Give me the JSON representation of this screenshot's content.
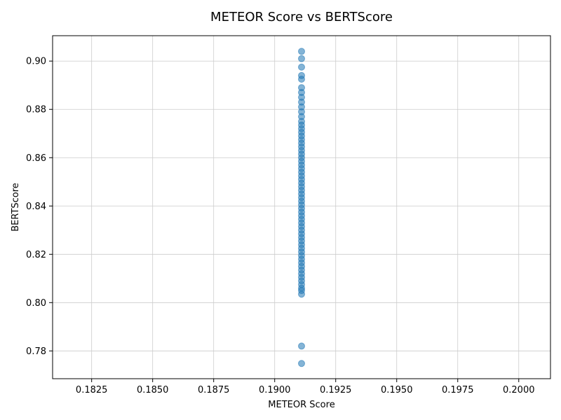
{
  "chart_data": {
    "type": "scatter",
    "title": "METEOR Score vs BERTScore",
    "xlabel": "METEOR Score",
    "ylabel": "BERTScore",
    "xlim": [
      0.1809,
      0.2013
    ],
    "ylim": [
      0.7685,
      0.9105
    ],
    "xticks": [
      0.1825,
      0.185,
      0.1875,
      0.19,
      0.1925,
      0.195,
      0.1975,
      0.2
    ],
    "xtick_labels": [
      "0.1825",
      "0.1850",
      "0.1875",
      "0.1900",
      "0.1925",
      "0.1950",
      "0.1975",
      "0.2000"
    ],
    "yticks": [
      0.78,
      0.8,
      0.82,
      0.84,
      0.86,
      0.88,
      0.9
    ],
    "ytick_labels": [
      "0.78",
      "0.80",
      "0.82",
      "0.84",
      "0.86",
      "0.88",
      "0.90"
    ],
    "grid": true,
    "point_color": "#1f77b4",
    "point_alpha": 0.55,
    "x_value": 0.1911,
    "y": [
      0.904,
      0.901,
      0.8975,
      0.894,
      0.8925,
      0.889,
      0.887,
      0.885,
      0.883,
      0.881,
      0.879,
      0.877,
      0.875,
      0.8735,
      0.872,
      0.8705,
      0.869,
      0.8675,
      0.866,
      0.8645,
      0.863,
      0.8615,
      0.86,
      0.8585,
      0.857,
      0.8555,
      0.854,
      0.8525,
      0.851,
      0.8495,
      0.848,
      0.8465,
      0.845,
      0.8435,
      0.842,
      0.8405,
      0.839,
      0.8375,
      0.836,
      0.8345,
      0.833,
      0.8315,
      0.83,
      0.8285,
      0.827,
      0.8255,
      0.824,
      0.8225,
      0.821,
      0.8195,
      0.818,
      0.8165,
      0.815,
      0.8135,
      0.812,
      0.8105,
      0.809,
      0.8075,
      0.806,
      0.805,
      0.8035,
      0.782,
      0.7748
    ]
  }
}
